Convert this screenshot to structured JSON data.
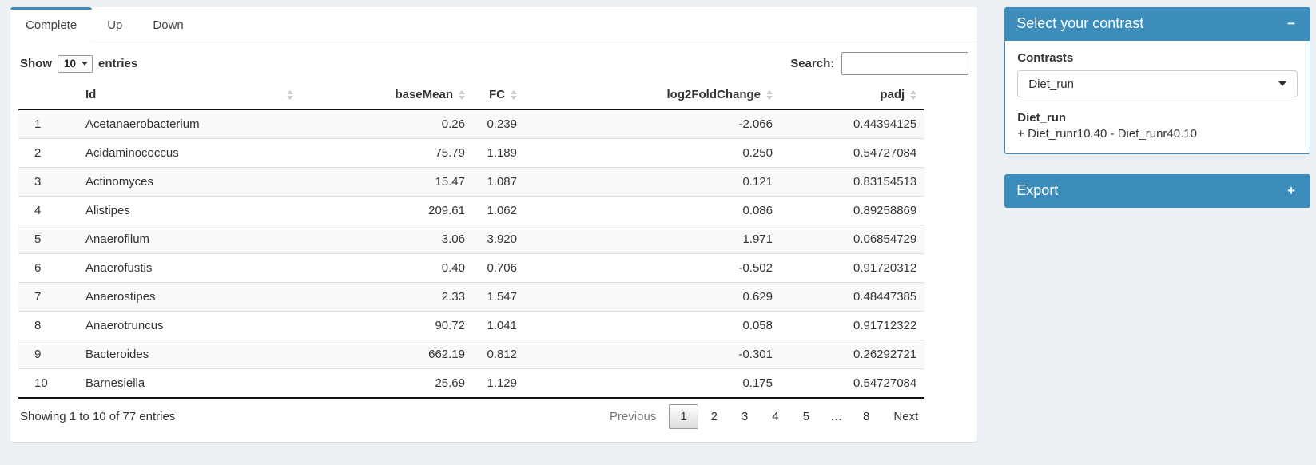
{
  "tabs": [
    {
      "label": "Complete",
      "active": true
    },
    {
      "label": "Up",
      "active": false
    },
    {
      "label": "Down",
      "active": false
    }
  ],
  "controls": {
    "show_label": "Show",
    "page_length": "10",
    "entries_label": "entries",
    "search_label": "Search:",
    "search_value": ""
  },
  "table": {
    "columns": [
      "",
      "Id",
      "baseMean",
      "FC",
      "log2FoldChange",
      "padj"
    ],
    "rows": [
      [
        "1",
        "Acetanaerobacterium",
        "0.26",
        "0.239",
        "-2.066",
        "0.44394125"
      ],
      [
        "2",
        "Acidaminococcus",
        "75.79",
        "1.189",
        "0.250",
        "0.54727084"
      ],
      [
        "3",
        "Actinomyces",
        "15.47",
        "1.087",
        "0.121",
        "0.83154513"
      ],
      [
        "4",
        "Alistipes",
        "209.61",
        "1.062",
        "0.086",
        "0.89258869"
      ],
      [
        "5",
        "Anaerofilum",
        "3.06",
        "3.920",
        "1.971",
        "0.06854729"
      ],
      [
        "6",
        "Anaerofustis",
        "0.40",
        "0.706",
        "-0.502",
        "0.91720312"
      ],
      [
        "7",
        "Anaerostipes",
        "2.33",
        "1.547",
        "0.629",
        "0.48447385"
      ],
      [
        "8",
        "Anaerotruncus",
        "90.72",
        "1.041",
        "0.058",
        "0.91712322"
      ],
      [
        "9",
        "Bacteroides",
        "662.19",
        "0.812",
        "-0.301",
        "0.26292721"
      ],
      [
        "10",
        "Barnesiella",
        "25.69",
        "1.129",
        "0.175",
        "0.54727084"
      ]
    ],
    "info": "Showing 1 to 10 of 77 entries",
    "pagination": [
      {
        "label": "Previous",
        "state": "disabled"
      },
      {
        "label": "1",
        "state": "current"
      },
      {
        "label": "2",
        "state": "normal"
      },
      {
        "label": "3",
        "state": "normal"
      },
      {
        "label": "4",
        "state": "normal"
      },
      {
        "label": "5",
        "state": "normal"
      },
      {
        "label": "…",
        "state": "ellipsis"
      },
      {
        "label": "8",
        "state": "normal"
      },
      {
        "label": "Next",
        "state": "normal"
      }
    ]
  },
  "contrast_box": {
    "title": "Select your contrast",
    "collapse_icon": "−",
    "contrasts_label": "Contrasts",
    "selected_contrast": "Diet_run",
    "contrast_name": "Diet_run",
    "contrast_formula": "+ Diet_runr10.40 - Diet_runr40.10"
  },
  "export_box": {
    "title": "Export",
    "expand_icon": "+"
  },
  "colors": {
    "accent": "#3c8dbc",
    "page_bg": "#ecf0f5",
    "stripe": "#f9f9f9"
  }
}
